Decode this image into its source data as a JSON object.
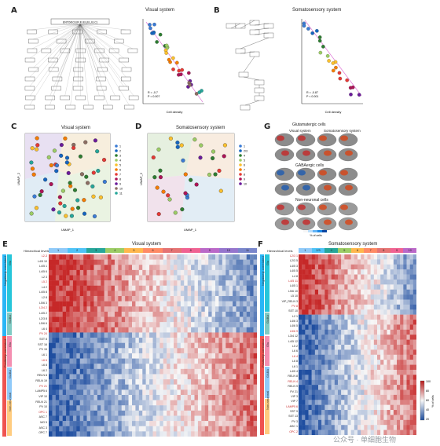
{
  "panels": {
    "A": {
      "label": "A",
      "title": "Visual system",
      "xlabel": "Cell density",
      "ylabel": "Hierarchical levels",
      "stats": [
        "R = -0.7",
        "P = 0.007"
      ],
      "root_box": "ENTO/EO,ER,EI,EL(EL,ELC)",
      "xticks": [
        "400",
        "800",
        "1200",
        "1600"
      ]
    },
    "B": {
      "label": "B",
      "title": "Somatosensory system",
      "xlabel": "Cell density",
      "ylabel": "Hierarchical levels",
      "stats": [
        "R = -0.87",
        "P < 0.001"
      ],
      "xticks": [
        "400",
        "600",
        "800",
        "1000"
      ]
    },
    "C": {
      "label": "C",
      "title": "Visual system",
      "xlabel": "UMAP_1",
      "ylabel": "UMAP_2",
      "legend_title": "Hierarchical levels",
      "legend": [
        "1",
        "2",
        "3",
        "4",
        "5",
        "6",
        "7",
        "8",
        "9",
        "10",
        "11"
      ]
    },
    "D": {
      "label": "D",
      "title": "Somatosensory system",
      "xlabel": "UMAP_1",
      "ylabel": "UMAP_2",
      "legend_title": "Hierarchical levels",
      "legend": [
        "1",
        "2/3",
        "4",
        "5",
        "6",
        "7",
        "8",
        "9",
        "10"
      ]
    },
    "G": {
      "label": "G",
      "col_titles": [
        "Visual system",
        "Somatosensory system"
      ],
      "sections": [
        "Glutamatergic cells",
        "GABAergic cells",
        "Non-neuronal cells"
      ],
      "colorbar_label": "% of cells"
    },
    "E": {
      "label": "E",
      "title": "Visual system",
      "levels_label": "Hierarchical levels",
      "levels": [
        "1",
        "2",
        "3",
        "4",
        "5",
        "6",
        "7",
        "8",
        "9",
        "10",
        "11"
      ],
      "groups": [
        "Negatively correlated",
        "Positively correlated"
      ],
      "subgroups": [
        "Glu",
        "GABA",
        "Glu",
        "GABA",
        "Non-neuronal"
      ],
      "rows": [
        "L2-3",
        "L4/5 10",
        "L4/5 1",
        "L4/5 6",
        "L2 3",
        "L5 2",
        "L4 2",
        "L4/5 8",
        "L2 8",
        "L5/6 3",
        "L3/4 2",
        "L4/5 2",
        "L2/3 8",
        "L5/6 6",
        "L6 4",
        "PV 24",
        "SST 8",
        "SST 16",
        "PV 15",
        "L6 1",
        "L6 6",
        "L6 8",
        "L6 2",
        "RELN 8",
        "RELN 19",
        "PV 21",
        "LAMP5 6",
        "VIP 10",
        "RELN 21",
        "PV 10",
        "OPC 1",
        "ASC 7",
        "MG 5",
        "ASC 3",
        "OPC 7"
      ]
    },
    "F": {
      "label": "F",
      "title": "Somatosensory system",
      "levels_label": "Hierarchical levels",
      "levels": [
        "1",
        "2/3",
        "4",
        "5",
        "6",
        "7",
        "8",
        "9",
        "10"
      ],
      "groups": [
        "Negatively correlated",
        "Positively correlated"
      ],
      "subgroups": [
        "Glu",
        "GABA",
        "Glu",
        "GABA",
        "Non-neuronal"
      ],
      "rows": [
        "L2/3 1",
        "L2/3 5",
        "L4/5 3",
        "L4/5 5",
        "L4 8",
        "L4/5 11",
        "L4/5 1",
        "L5/6 10",
        "L5 10",
        "VIP_RELN 3",
        "PV 8",
        "SST 10",
        "L2 1",
        "L4/6 3",
        "L4/6 5",
        "L5/6 9",
        "L3/4 12",
        "L4/5 12",
        "L5 2",
        "L6 6",
        "L6 4",
        "L6 8",
        "L6 1",
        "L4/5 4",
        "RELN 8",
        "RELN 4",
        "RELN 9",
        "PV 21",
        "VIP 3",
        "VIP 7",
        "LAMP5 6",
        "SST 9",
        "SST 13",
        "PV 3",
        "ASC 1",
        "OPC 2"
      ],
      "colorbar": [
        "100",
        "80",
        "60",
        "40",
        "20"
      ],
      "colorbar_label": "% of cells"
    }
  },
  "watermark": "公众号 · 单细胞生物",
  "colors": {
    "low": "#2b5fae",
    "mid": "#f7f7f7",
    "high": "#c62828"
  }
}
